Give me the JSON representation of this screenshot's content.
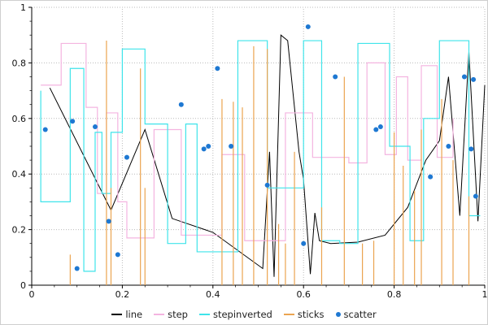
{
  "chart_data": {
    "type": "mixed",
    "title": "",
    "xlabel": "",
    "ylabel": "",
    "xlim": [
      0,
      1
    ],
    "ylim": [
      0,
      1
    ],
    "xticks": [
      0,
      0.2,
      0.4,
      0.6,
      0.8,
      1
    ],
    "yticks": [
      0,
      0.2,
      0.4,
      0.6,
      0.8,
      1
    ],
    "xtick_labels": [
      "0",
      "0.2",
      "0.4",
      "0.6",
      "0.8",
      "1"
    ],
    "ytick_labels": [
      "0",
      "0.2",
      "0.4",
      "0.6",
      "0.8",
      "1"
    ],
    "minor_tick_step": 0.05,
    "grid": "dotted",
    "legend_position": "bottom",
    "style": {
      "grid_color": "#bbbbbb",
      "axis_color": "#000000",
      "tick_label_color": "#111111",
      "background": "#ffffff",
      "border_color": "#cfcfcf"
    },
    "series": [
      {
        "name": "line",
        "type": "line",
        "color": "#000000",
        "x": [
          0.04,
          0.175,
          0.25,
          0.31,
          0.4,
          0.51,
          0.525,
          0.535,
          0.55,
          0.565,
          0.59,
          0.6,
          0.615,
          0.625,
          0.635,
          0.66,
          0.72,
          0.78,
          0.83,
          0.87,
          0.9,
          0.92,
          0.945,
          0.965,
          0.985,
          1.0
        ],
        "y": [
          0.71,
          0.27,
          0.56,
          0.24,
          0.19,
          0.06,
          0.48,
          0.03,
          0.9,
          0.88,
          0.48,
          0.38,
          0.04,
          0.26,
          0.16,
          0.15,
          0.155,
          0.18,
          0.28,
          0.45,
          0.52,
          0.75,
          0.25,
          0.84,
          0.23,
          0.72
        ]
      },
      {
        "name": "step",
        "type": "step",
        "color": "#f4b4e0",
        "x": [
          0.02,
          0.065,
          0.12,
          0.145,
          0.165,
          0.19,
          0.21,
          0.27,
          0.33,
          0.42,
          0.47,
          0.56,
          0.62,
          0.7,
          0.74,
          0.78,
          0.805,
          0.83,
          0.86,
          0.895,
          0.93
        ],
        "y": [
          0.72,
          0.87,
          0.64,
          0.33,
          0.62,
          0.3,
          0.17,
          0.56,
          0.18,
          0.47,
          0.16,
          0.62,
          0.46,
          0.44,
          0.8,
          0.47,
          0.75,
          0.45,
          0.79,
          0.46,
          0.6
        ]
      },
      {
        "name": "stepinverted",
        "type": "step-inverted",
        "color": "#3fe4ea",
        "x": [
          0.02,
          0.085,
          0.115,
          0.14,
          0.155,
          0.175,
          0.2,
          0.225,
          0.25,
          0.3,
          0.34,
          0.365,
          0.4,
          0.455,
          0.52,
          0.6,
          0.64,
          0.68,
          0.72,
          0.79,
          0.835,
          0.865,
          0.9,
          0.935,
          0.965,
          0.99
        ],
        "y": [
          0.7,
          0.3,
          0.78,
          0.05,
          0.55,
          0.33,
          0.55,
          0.85,
          0.85,
          0.58,
          0.15,
          0.58,
          0.12,
          0.12,
          0.88,
          0.35,
          0.88,
          0.16,
          0.15,
          0.87,
          0.5,
          0.16,
          0.6,
          0.88,
          0.88,
          0.25
        ]
      },
      {
        "name": "sticks",
        "type": "sticks",
        "color": "#eba450",
        "x": [
          0.085,
          0.165,
          0.175,
          0.24,
          0.25,
          0.42,
          0.445,
          0.465,
          0.49,
          0.52,
          0.545,
          0.56,
          0.58,
          0.64,
          0.69,
          0.73,
          0.755,
          0.8,
          0.82,
          0.845,
          0.86,
          0.905,
          0.93,
          0.965
        ],
        "y": [
          0.11,
          0.88,
          0.35,
          0.78,
          0.35,
          0.67,
          0.66,
          0.64,
          0.86,
          0.85,
          0.22,
          0.15,
          0.48,
          0.28,
          0.75,
          0.15,
          0.16,
          0.55,
          0.43,
          0.34,
          0.56,
          0.67,
          0.45,
          0.32
        ]
      },
      {
        "name": "scatter",
        "type": "scatter",
        "color": "#1e78d2",
        "x": [
          0.03,
          0.09,
          0.1,
          0.14,
          0.17,
          0.19,
          0.21,
          0.33,
          0.38,
          0.39,
          0.41,
          0.44,
          0.52,
          0.6,
          0.61,
          0.67,
          0.76,
          0.77,
          0.88,
          0.92,
          0.955,
          0.97,
          0.975,
          0.98
        ],
        "y": [
          0.56,
          0.59,
          0.06,
          0.57,
          0.23,
          0.11,
          0.46,
          0.65,
          0.49,
          0.5,
          0.78,
          0.5,
          0.36,
          0.15,
          0.93,
          0.75,
          0.56,
          0.57,
          0.39,
          0.5,
          0.75,
          0.49,
          0.74,
          0.32
        ]
      }
    ]
  }
}
